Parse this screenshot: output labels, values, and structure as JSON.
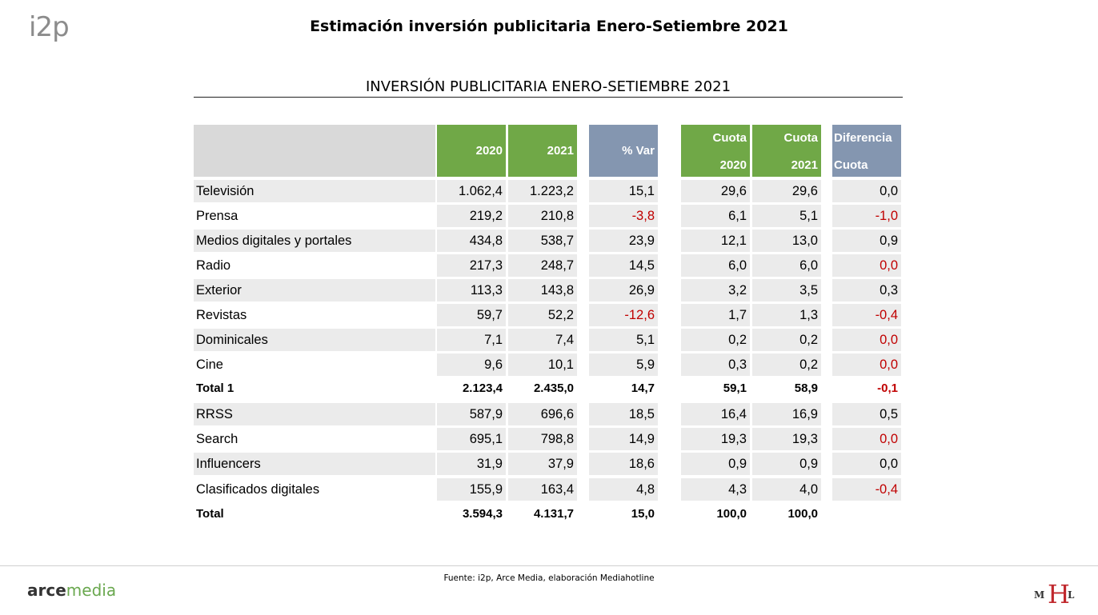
{
  "header": {
    "logo": "i2p",
    "title": "Estimación inversión publicitaria Enero-Setiembre 2021"
  },
  "table": {
    "title": "INVERSIÓN PUBLICITARIA ENERO-SETIEMBRE 2021",
    "columns": {
      "y2020": "2020",
      "y2021": "2021",
      "var": "% Var",
      "cuota2020": [
        "Cuota",
        "2020"
      ],
      "cuota2021": [
        "Cuota",
        "2021"
      ],
      "diferencia": [
        "Diferencia",
        "Cuota"
      ]
    },
    "rows": [
      {
        "label": "Televisión",
        "y2020": "1.062,4",
        "y2021": "1.223,2",
        "var": "15,1",
        "c2020": "29,6",
        "c2021": "29,6",
        "dif": "0,0",
        "var_neg": false,
        "dif_neg": false,
        "shade": true,
        "bold": false
      },
      {
        "label": "Prensa",
        "y2020": "219,2",
        "y2021": "210,8",
        "var": "-3,8",
        "c2020": "6,1",
        "c2021": "5,1",
        "dif": "-1,0",
        "var_neg": true,
        "dif_neg": true,
        "shade": false,
        "bold": false
      },
      {
        "label": "Medios digitales y portales",
        "y2020": "434,8",
        "y2021": "538,7",
        "var": "23,9",
        "c2020": "12,1",
        "c2021": "13,0",
        "dif": "0,9",
        "var_neg": false,
        "dif_neg": false,
        "shade": true,
        "bold": false
      },
      {
        "label": "Radio",
        "y2020": "217,3",
        "y2021": "248,7",
        "var": "14,5",
        "c2020": "6,0",
        "c2021": "6,0",
        "dif": "0,0",
        "var_neg": false,
        "dif_neg": true,
        "shade": false,
        "bold": false
      },
      {
        "label": "Exterior",
        "y2020": "113,3",
        "y2021": "143,8",
        "var": "26,9",
        "c2020": "3,2",
        "c2021": "3,5",
        "dif": "0,3",
        "var_neg": false,
        "dif_neg": false,
        "shade": true,
        "bold": false
      },
      {
        "label": "Revistas",
        "y2020": "59,7",
        "y2021": "52,2",
        "var": "-12,6",
        "c2020": "1,7",
        "c2021": "1,3",
        "dif": "-0,4",
        "var_neg": true,
        "dif_neg": true,
        "shade": false,
        "bold": false
      },
      {
        "label": "Dominicales",
        "y2020": "7,1",
        "y2021": "7,4",
        "var": "5,1",
        "c2020": "0,2",
        "c2021": "0,2",
        "dif": "0,0",
        "var_neg": false,
        "dif_neg": true,
        "shade": true,
        "bold": false
      },
      {
        "label": "Cine",
        "y2020": "9,6",
        "y2021": "10,1",
        "var": "5,9",
        "c2020": "0,3",
        "c2021": "0,2",
        "dif": "0,0",
        "var_neg": false,
        "dif_neg": true,
        "shade": false,
        "bold": false
      },
      {
        "label": "Total 1",
        "y2020": "2.123,4",
        "y2021": "2.435,0",
        "var": "14,7",
        "c2020": "59,1",
        "c2021": "58,9",
        "dif": "-0,1",
        "var_neg": false,
        "dif_neg": true,
        "shade": false,
        "bold": true
      },
      {
        "label": "RRSS",
        "y2020": "587,9",
        "y2021": "696,6",
        "var": "18,5",
        "c2020": "16,4",
        "c2021": "16,9",
        "dif": "0,5",
        "var_neg": false,
        "dif_neg": false,
        "shade": true,
        "bold": false
      },
      {
        "label": "Search",
        "y2020": "695,1",
        "y2021": "798,8",
        "var": "14,9",
        "c2020": "19,3",
        "c2021": "19,3",
        "dif": "0,0",
        "var_neg": false,
        "dif_neg": true,
        "shade": false,
        "bold": false
      },
      {
        "label": "Influencers",
        "y2020": "31,9",
        "y2021": "37,9",
        "var": "18,6",
        "c2020": "0,9",
        "c2021": "0,9",
        "dif": "0,0",
        "var_neg": false,
        "dif_neg": false,
        "shade": true,
        "bold": false
      },
      {
        "label": "Clasificados digitales",
        "y2020": "155,9",
        "y2021": "163,4",
        "var": "4,8",
        "c2020": "4,3",
        "c2021": "4,0",
        "dif": "-0,4",
        "var_neg": false,
        "dif_neg": true,
        "shade": false,
        "bold": false
      },
      {
        "label": "Total",
        "y2020": "3.594,3",
        "y2021": "4.131,7",
        "var": "15,0",
        "c2020": "100,0",
        "c2021": "100,0",
        "dif": "",
        "var_neg": false,
        "dif_neg": false,
        "shade": false,
        "bold": true
      }
    ]
  },
  "footer": {
    "source": "Fuente: i2p, Arce Media, elaboración Mediahotline",
    "logo_arce_1": "arce",
    "logo_arce_2": "media",
    "logo_mhl": "MHL"
  },
  "colors": {
    "green_header": "#70a847",
    "blue_header": "#8496b0",
    "negative": "#c00000",
    "row_shade": "#ebebeb"
  }
}
